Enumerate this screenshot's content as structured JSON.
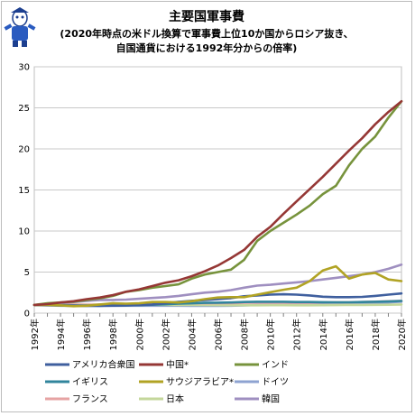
{
  "chart_data": {
    "type": "line",
    "title": "主要国軍事費",
    "subtitle_line1": "(2020年時点の米ドル換算で軍事費上位10か国からロシア抜き、",
    "subtitle_line2": "自国通貨における1992年分からの倍率)",
    "ylim": [
      0,
      30
    ],
    "yticks": [
      0,
      5,
      10,
      15,
      20,
      25,
      30
    ],
    "grid": true,
    "legend_position": "bottom",
    "x": [
      1992,
      1993,
      1994,
      1995,
      1996,
      1997,
      1998,
      1999,
      2000,
      2001,
      2002,
      2003,
      2004,
      2005,
      2006,
      2007,
      2008,
      2009,
      2010,
      2011,
      2012,
      2013,
      2014,
      2015,
      2016,
      2017,
      2018,
      2019,
      2020
    ],
    "xtick_labels": [
      "1992年",
      "1994年",
      "1996年",
      "1998年",
      "2000年",
      "2002年",
      "2004年",
      "2006年",
      "2008年",
      "2010年",
      "2012年",
      "2014年",
      "2016年",
      "2018年",
      "2020年"
    ],
    "series": [
      {
        "name": "アメリカ合衆国",
        "color": "#3f5f9e",
        "values": [
          1.0,
          0.97,
          0.93,
          0.91,
          0.89,
          0.9,
          0.91,
          0.94,
          1.0,
          1.05,
          1.2,
          1.36,
          1.5,
          1.6,
          1.7,
          1.82,
          2.05,
          2.15,
          2.25,
          2.3,
          2.25,
          2.15,
          2.0,
          1.95,
          1.95,
          1.98,
          2.1,
          2.25,
          2.4
        ]
      },
      {
        "name": "中国*",
        "color": "#953735",
        "values": [
          1.0,
          1.1,
          1.3,
          1.45,
          1.7,
          1.9,
          2.2,
          2.6,
          2.9,
          3.3,
          3.7,
          4.0,
          4.5,
          5.1,
          5.8,
          6.7,
          7.7,
          9.3,
          10.5,
          12.1,
          13.6,
          15.1,
          16.6,
          18.2,
          19.8,
          21.3,
          23.0,
          24.5,
          25.8
        ]
      },
      {
        "name": "インド",
        "color": "#77933c",
        "values": [
          1.0,
          1.2,
          1.3,
          1.4,
          1.6,
          1.8,
          2.1,
          2.6,
          2.8,
          3.1,
          3.3,
          3.5,
          4.2,
          4.7,
          5.0,
          5.3,
          6.5,
          8.8,
          10.0,
          11.0,
          12.0,
          13.1,
          14.5,
          15.5,
          18.0,
          20.0,
          21.5,
          23.8,
          25.8
        ]
      },
      {
        "name": "イギリス",
        "color": "#31859c",
        "values": [
          1.0,
          0.98,
          0.96,
          0.92,
          0.92,
          0.9,
          0.93,
          0.95,
          0.98,
          1.02,
          1.08,
          1.15,
          1.2,
          1.25,
          1.28,
          1.3,
          1.35,
          1.38,
          1.38,
          1.38,
          1.35,
          1.35,
          1.33,
          1.32,
          1.32,
          1.35,
          1.38,
          1.42,
          1.48
        ]
      },
      {
        "name": "サウジアラビア*",
        "color": "#b1a324",
        "values": [
          1.0,
          1.0,
          0.95,
          0.85,
          0.9,
          1.05,
          1.2,
          1.15,
          1.2,
          1.35,
          1.35,
          1.3,
          1.45,
          1.7,
          1.9,
          1.95,
          1.95,
          2.25,
          2.55,
          2.85,
          3.1,
          3.9,
          5.2,
          5.7,
          4.2,
          4.7,
          4.9,
          4.1,
          3.9
        ]
      },
      {
        "name": "ドイツ",
        "color": "#8ea3d1",
        "values": [
          1.0,
          0.95,
          0.9,
          0.88,
          0.88,
          0.87,
          0.88,
          0.9,
          0.9,
          0.9,
          0.9,
          0.9,
          0.88,
          0.88,
          0.88,
          0.9,
          0.95,
          1.0,
          1.0,
          1.0,
          1.02,
          1.02,
          1.02,
          1.05,
          1.1,
          1.15,
          1.2,
          1.3,
          1.4
        ]
      },
      {
        "name": "フランス",
        "color": "#e6a3a3",
        "values": [
          1.0,
          1.02,
          1.05,
          1.02,
          1.02,
          1.03,
          1.02,
          1.03,
          1.05,
          1.08,
          1.12,
          1.18,
          1.2,
          1.2,
          1.22,
          1.22,
          1.25,
          1.28,
          1.28,
          1.28,
          1.28,
          1.28,
          1.3,
          1.32,
          1.32,
          1.35,
          1.4,
          1.45,
          1.5
        ]
      },
      {
        "name": "日本",
        "color": "#c4d79b",
        "values": [
          1.0,
          1.01,
          1.02,
          1.03,
          1.03,
          1.03,
          1.02,
          1.02,
          1.02,
          1.02,
          1.01,
          1.0,
          0.99,
          0.98,
          0.97,
          0.96,
          0.96,
          0.96,
          0.97,
          0.97,
          0.96,
          0.96,
          0.97,
          0.98,
          1.0,
          1.0,
          1.01,
          1.02,
          1.05
        ]
      },
      {
        "name": "韓国",
        "color": "#9f8fc0",
        "values": [
          1.0,
          1.1,
          1.2,
          1.35,
          1.5,
          1.6,
          1.6,
          1.65,
          1.75,
          1.85,
          1.95,
          2.1,
          2.3,
          2.5,
          2.6,
          2.8,
          3.1,
          3.35,
          3.45,
          3.6,
          3.75,
          3.9,
          4.1,
          4.3,
          4.5,
          4.7,
          5.0,
          5.4,
          5.9
        ]
      }
    ]
  }
}
